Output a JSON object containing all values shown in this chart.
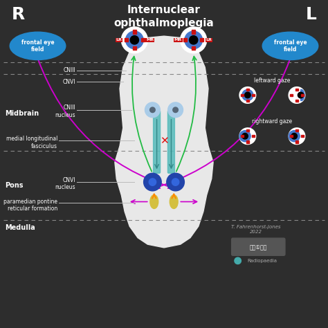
{
  "title_line1": "Internuclear",
  "title_line2": "ophthalmoplegia",
  "bg_color": "#2d2d2d",
  "label_R": "R",
  "label_L": "L",
  "label_midbrain": "Midbrain",
  "label_pons": "Pons",
  "label_medulla": "Medulla",
  "label_cniii": "CNIII",
  "label_cnvi": "CNVI",
  "label_cniii_nucleus": "CNIII\nnucleus",
  "label_mlf": "medial longitudinal\nfasciculus",
  "label_cnvi_nucleus": "CNVI\nnucleus",
  "label_pprf": "paramedian pontine\nreticular formation",
  "label_frontal_eye": "frontal eye\nfield",
  "label_leftward": "leftward gaze",
  "label_rightward": "rightward gaze",
  "label_credit": "T. Fahrenhorst-Jones\n2022",
  "label_radiopaedia": "Radiopaedia",
  "dashed_line_color": "#888888",
  "white_line_color": "#bbbbbb",
  "green_color": "#22bb44",
  "purple_color": "#cc00cc",
  "teal_color": "#44aaaa",
  "orange_color": "#ff8800",
  "red_color": "#cc2222",
  "blue_eye_color": "#4477cc",
  "red_square_color": "#cc1111",
  "frontal_eye_color": "#2288cc",
  "brainstem_color": "#e8e8e8",
  "text_color": "#ffffff",
  "gray_text": "#aaaaaa"
}
